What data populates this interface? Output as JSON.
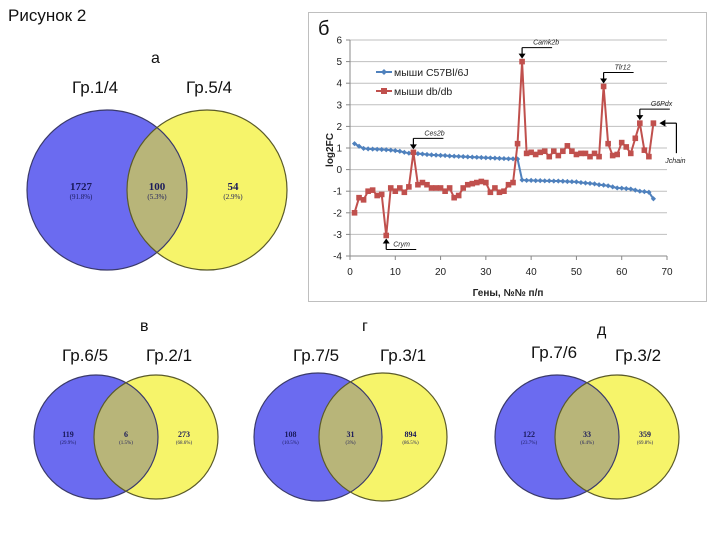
{
  "figure_title": "Рисунок 2",
  "panels": {
    "a": {
      "letter": "а",
      "left_group": "Гр.1/4",
      "right_group": "Гр.5/4",
      "left_only": {
        "count": "1727",
        "pct": "(91.8%)"
      },
      "overlap": {
        "count": "100",
        "pct": "(5.3%)"
      },
      "right_only": {
        "count": "54",
        "pct": "(2.9%)"
      }
    },
    "b": {
      "letter": "б"
    },
    "v": {
      "letter": "в",
      "left_group": "Гр.6/5",
      "right_group": "Гр.2/1",
      "left_only": {
        "count": "119",
        "pct": "(29.9%)"
      },
      "overlap": {
        "count": "6",
        "pct": "(1.5%)"
      },
      "right_only": {
        "count": "273",
        "pct": "(68.6%)"
      }
    },
    "g": {
      "letter": "г",
      "left_group": "Гр.7/5",
      "right_group": "Гр.3/1",
      "left_only": {
        "count": "108",
        "pct": "(10.5%)"
      },
      "overlap": {
        "count": "31",
        "pct": "(3%)"
      },
      "right_only": {
        "count": "894",
        "pct": "(86.5%)"
      }
    },
    "d": {
      "letter": "д",
      "left_group": "Гр.7/6",
      "right_group": "Гр.3/2",
      "left_only": {
        "count": "122",
        "pct": "(23.7%)"
      },
      "overlap": {
        "count": "33",
        "pct": "(6.4%)"
      },
      "right_only": {
        "count": "359",
        "pct": "(69.8%)"
      }
    }
  },
  "colors": {
    "venn_left": "#6b6bf0",
    "venn_right": "#f6f46a",
    "venn_overlap": "#b8b579",
    "series_blue": "#4f81bd",
    "series_red": "#c0504d",
    "grid": "#bfbfbf"
  },
  "chart_data": {
    "type": "line",
    "title": "",
    "xlabel": "Гены, №№ п/п",
    "ylabel": "log2FC",
    "xlim": [
      0,
      70
    ],
    "ylim": [
      -4,
      6
    ],
    "xticks": [
      0,
      10,
      20,
      30,
      40,
      50,
      60,
      70
    ],
    "yticks": [
      -4,
      -3,
      -2,
      -1,
      0,
      1,
      2,
      3,
      4,
      5,
      6
    ],
    "grid": "horizontal",
    "legend_position": "upper-left",
    "x": [
      1,
      2,
      3,
      4,
      5,
      6,
      7,
      8,
      9,
      10,
      11,
      12,
      13,
      14,
      15,
      16,
      17,
      18,
      19,
      20,
      21,
      22,
      23,
      24,
      25,
      26,
      27,
      28,
      29,
      30,
      31,
      32,
      33,
      34,
      35,
      36,
      37,
      38,
      39,
      40,
      41,
      42,
      43,
      44,
      45,
      46,
      47,
      48,
      49,
      50,
      51,
      52,
      53,
      54,
      55,
      56,
      57,
      58,
      59,
      60,
      61,
      62,
      63,
      64,
      65,
      66,
      67
    ],
    "series": [
      {
        "name": "мыши C57Bl/6J",
        "marker": "diamond",
        "values": [
          1.2,
          1.08,
          0.98,
          0.96,
          0.95,
          0.94,
          0.93,
          0.92,
          0.9,
          0.88,
          0.85,
          0.8,
          0.76,
          0.75,
          0.74,
          0.72,
          0.7,
          0.68,
          0.67,
          0.66,
          0.65,
          0.63,
          0.62,
          0.61,
          0.6,
          0.59,
          0.58,
          0.57,
          0.56,
          0.55,
          0.54,
          0.53,
          0.52,
          0.51,
          0.5,
          0.5,
          0.49,
          -0.48,
          -0.5,
          -0.5,
          -0.51,
          -0.51,
          -0.52,
          -0.52,
          -0.53,
          -0.53,
          -0.54,
          -0.55,
          -0.56,
          -0.57,
          -0.6,
          -0.62,
          -0.64,
          -0.66,
          -0.7,
          -0.72,
          -0.75,
          -0.8,
          -0.85,
          -0.86,
          -0.88,
          -0.9,
          -0.95,
          -1.0,
          -1.02,
          -1.05,
          -1.35
        ]
      },
      {
        "name": "мыши db/db",
        "marker": "square",
        "values": [
          -2.0,
          -1.3,
          -1.4,
          -1.0,
          -0.95,
          -1.2,
          -1.15,
          -3.05,
          -0.85,
          -1.0,
          -0.85,
          -1.05,
          -0.8,
          0.8,
          -0.7,
          -0.6,
          -0.7,
          -0.85,
          -0.85,
          -0.85,
          -1.0,
          -0.85,
          -1.3,
          -1.2,
          -0.85,
          -0.7,
          -0.65,
          -0.6,
          -0.55,
          -0.6,
          -1.05,
          -0.85,
          -1.05,
          -1.0,
          -0.7,
          -0.6,
          1.2,
          5.0,
          0.75,
          0.8,
          0.7,
          0.8,
          0.85,
          0.6,
          0.85,
          0.65,
          0.85,
          1.1,
          0.85,
          0.7,
          0.75,
          0.75,
          0.6,
          0.75,
          0.6,
          3.85,
          1.2,
          0.65,
          0.7,
          1.25,
          1.05,
          0.75,
          1.45,
          2.15,
          0.9,
          0.6,
          2.15
        ]
      }
    ],
    "annotations": [
      {
        "text": "Ces2b",
        "x": 14,
        "y": 0.8,
        "direction": "down"
      },
      {
        "text": "Crym",
        "x": 8,
        "y": -3.05,
        "direction": "up"
      },
      {
        "text": "Camk2b",
        "x": 38,
        "y": 5.0,
        "direction": "down"
      },
      {
        "text": "Tlr12",
        "x": 56,
        "y": 3.85,
        "direction": "down"
      },
      {
        "text": "G6Pdx",
        "x": 64,
        "y": 2.15,
        "direction": "down"
      },
      {
        "text": "Jchain",
        "x": 67,
        "y": 2.15,
        "direction": "left"
      }
    ]
  }
}
